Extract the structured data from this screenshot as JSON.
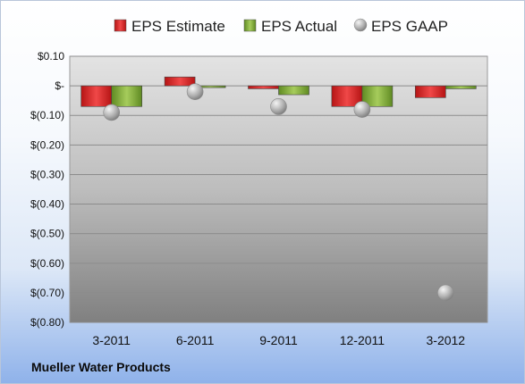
{
  "company": "Mueller Water Products",
  "chart_data": {
    "type": "bar",
    "categories": [
      "3-2011",
      "6-2011",
      "9-2011",
      "12-2011",
      "3-2012"
    ],
    "series": [
      {
        "name": "EPS Estimate",
        "kind": "bar",
        "color": "#d42a2a",
        "values": [
          -0.07,
          0.03,
          -0.01,
          -0.07,
          -0.04
        ]
      },
      {
        "name": "EPS Actual",
        "kind": "bar",
        "color": "#7ea63a",
        "values": [
          -0.07,
          0.0,
          -0.03,
          -0.07,
          -0.01
        ]
      },
      {
        "name": "EPS GAAP",
        "kind": "marker",
        "color": "#a8a8a8",
        "values": [
          -0.09,
          -0.02,
          -0.07,
          -0.08,
          -0.7
        ]
      }
    ],
    "y_ticks": [
      {
        "value": 0.1,
        "label": "$0.10"
      },
      {
        "value": 0.0,
        "label": "$-"
      },
      {
        "value": -0.1,
        "label": "$(0.10)"
      },
      {
        "value": -0.2,
        "label": "$(0.20)"
      },
      {
        "value": -0.3,
        "label": "$(0.30)"
      },
      {
        "value": -0.4,
        "label": "$(0.40)"
      },
      {
        "value": -0.5,
        "label": "$(0.50)"
      },
      {
        "value": -0.6,
        "label": "$(0.60)"
      },
      {
        "value": -0.7,
        "label": "$(0.70)"
      },
      {
        "value": -0.8,
        "label": "$(0.80)"
      }
    ],
    "ylim": [
      -0.8,
      0.1
    ],
    "grid": true,
    "legend": "top"
  }
}
